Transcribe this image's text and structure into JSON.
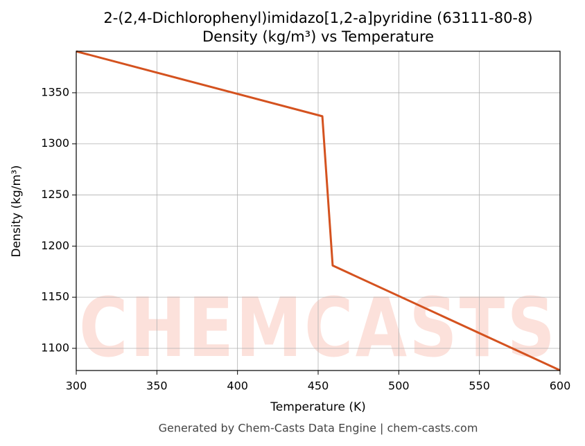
{
  "chart_data": {
    "type": "line",
    "title": "2-(2,4-Dichlorophenyl)imidazo[1,2-a]pyridine (63111-80-8)",
    "subtitle": "Density (kg/m³) vs Temperature",
    "x_label": "Temperature (K)",
    "y_label": "Density (kg/m³)",
    "watermark": "CHEMCASTS",
    "footer": "Generated by Chem-Casts Data Engine | chem-casts.com",
    "x": [
      300,
      452.6,
      459,
      600
    ],
    "series": [
      {
        "name": "Density",
        "color": "#d4521f",
        "values": [
          1390.5,
          1327,
          1181,
          1078.5
        ]
      }
    ],
    "xlim": [
      300,
      600
    ],
    "xticks": [
      300,
      350,
      400,
      450,
      500,
      550,
      600
    ],
    "ylim": [
      1078.3,
      1390.6
    ],
    "yticks": [
      1100,
      1150,
      1200,
      1250,
      1300,
      1350
    ],
    "grid": true
  }
}
